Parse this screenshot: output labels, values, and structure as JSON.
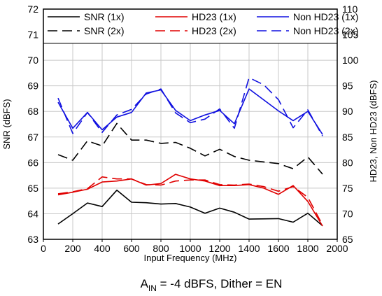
{
  "chart_data": {
    "type": "line",
    "xlabel": "Input Frequency (MHz)",
    "ylabel_left": "SNR (dBFS)",
    "ylabel_right": "HD23, Non HD23 (dBFS)",
    "xlim": [
      0,
      2000
    ],
    "ylim_left": [
      63,
      72
    ],
    "ylim_right": [
      65,
      110
    ],
    "x_ticks": [
      "0",
      "200",
      "400",
      "600",
      "800",
      "1000",
      "1200",
      "1400",
      "1600",
      "1800",
      "2000"
    ],
    "y_left_ticks": [
      "63",
      "64",
      "65",
      "66",
      "67",
      "68",
      "69",
      "70",
      "71",
      "72"
    ],
    "y_right_ticks": [
      "65",
      "70",
      "75",
      "80",
      "85",
      "90",
      "95",
      "100",
      "105",
      "110"
    ],
    "grid": true,
    "legend_position": "top",
    "caption": {
      "prefix": "A",
      "subscript": "IN",
      "suffix": " = -4 dBFS, Dither = EN"
    },
    "series": [
      {
        "name": "SNR (1x)",
        "axis": "left",
        "color": "#000000",
        "dash": "solid",
        "points": [
          [
            100,
            63.6
          ],
          [
            200,
            64.0
          ],
          [
            300,
            64.42
          ],
          [
            400,
            64.28
          ],
          [
            500,
            64.92
          ],
          [
            600,
            64.45
          ],
          [
            700,
            64.43
          ],
          [
            800,
            64.38
          ],
          [
            900,
            64.4
          ],
          [
            1000,
            64.26
          ],
          [
            1100,
            64.02
          ],
          [
            1200,
            64.22
          ],
          [
            1300,
            64.06
          ],
          [
            1400,
            63.79
          ],
          [
            1600,
            63.81
          ],
          [
            1700,
            63.67
          ],
          [
            1800,
            64.02
          ],
          [
            1900,
            63.53
          ]
        ]
      },
      {
        "name": "SNR (2x)",
        "axis": "left",
        "color": "#000000",
        "dash": "dash",
        "points": [
          [
            100,
            66.31
          ],
          [
            200,
            66.09
          ],
          [
            300,
            66.85
          ],
          [
            400,
            66.65
          ],
          [
            500,
            67.53
          ],
          [
            600,
            66.88
          ],
          [
            700,
            66.88
          ],
          [
            800,
            66.75
          ],
          [
            900,
            66.79
          ],
          [
            1000,
            66.56
          ],
          [
            1100,
            66.26
          ],
          [
            1200,
            66.52
          ],
          [
            1300,
            66.24
          ],
          [
            1400,
            66.09
          ],
          [
            1600,
            65.96
          ],
          [
            1700,
            65.76
          ],
          [
            1800,
            66.22
          ],
          [
            1900,
            65.55
          ]
        ]
      },
      {
        "name": "HD23 (1x)",
        "axis": "right",
        "color": "#e00000",
        "dash": "solid",
        "points": [
          [
            100,
            73.7
          ],
          [
            200,
            74.2
          ],
          [
            300,
            74.8
          ],
          [
            400,
            76.2
          ],
          [
            500,
            76.4
          ],
          [
            600,
            76.8
          ],
          [
            700,
            75.6
          ],
          [
            800,
            75.9
          ],
          [
            900,
            77.7
          ],
          [
            1000,
            76.8
          ],
          [
            1100,
            76.4
          ],
          [
            1200,
            75.5
          ],
          [
            1300,
            75.5
          ],
          [
            1400,
            75.7
          ],
          [
            1500,
            75.0
          ],
          [
            1600,
            73.8
          ],
          [
            1700,
            75.5
          ],
          [
            1800,
            72.4
          ],
          [
            1900,
            67.6
          ]
        ]
      },
      {
        "name": "HD23 (2x)",
        "axis": "right",
        "color": "#e00000",
        "dash": "dash",
        "points": [
          [
            100,
            73.9
          ],
          [
            200,
            74.3
          ],
          [
            300,
            74.9
          ],
          [
            400,
            77.2
          ],
          [
            500,
            76.8
          ],
          [
            600,
            76.8
          ],
          [
            700,
            75.7
          ],
          [
            800,
            75.6
          ],
          [
            900,
            76.4
          ],
          [
            1000,
            76.6
          ],
          [
            1100,
            76.6
          ],
          [
            1200,
            75.7
          ],
          [
            1300,
            75.6
          ],
          [
            1400,
            75.8
          ],
          [
            1500,
            75.3
          ],
          [
            1600,
            74.4
          ],
          [
            1700,
            75.3
          ],
          [
            1800,
            73.2
          ],
          [
            1900,
            67.8
          ]
        ]
      },
      {
        "name": "Non HD23 (1x)",
        "axis": "right",
        "color": "#1010e0",
        "dash": "solid",
        "points": [
          [
            100,
            91.8
          ],
          [
            200,
            86.7
          ],
          [
            300,
            89.8
          ],
          [
            400,
            86.4
          ],
          [
            500,
            88.9
          ],
          [
            600,
            89.8
          ],
          [
            700,
            93.6
          ],
          [
            800,
            94.2
          ],
          [
            900,
            90.2
          ],
          [
            1000,
            88.2
          ],
          [
            1100,
            89.3
          ],
          [
            1200,
            90.2
          ],
          [
            1300,
            87.6
          ],
          [
            1400,
            94.4
          ],
          [
            1600,
            90.1
          ],
          [
            1700,
            88.2
          ],
          [
            1800,
            90.0
          ],
          [
            1900,
            85.5
          ]
        ]
      },
      {
        "name": "Non HD23 (2x)",
        "axis": "right",
        "color": "#1010e0",
        "dash": "dash",
        "points": [
          [
            100,
            92.6
          ],
          [
            200,
            85.7
          ],
          [
            300,
            89.8
          ],
          [
            400,
            85.9
          ],
          [
            500,
            89.3
          ],
          [
            600,
            90.4
          ],
          [
            700,
            93.4
          ],
          [
            800,
            94.4
          ],
          [
            900,
            89.7
          ],
          [
            1000,
            87.8
          ],
          [
            1100,
            88.5
          ],
          [
            1200,
            90.5
          ],
          [
            1300,
            86.7
          ],
          [
            1400,
            96.6
          ],
          [
            1500,
            95.2
          ],
          [
            1600,
            92.3
          ],
          [
            1700,
            86.8
          ],
          [
            1800,
            90.3
          ],
          [
            1900,
            85.2
          ]
        ]
      }
    ]
  }
}
